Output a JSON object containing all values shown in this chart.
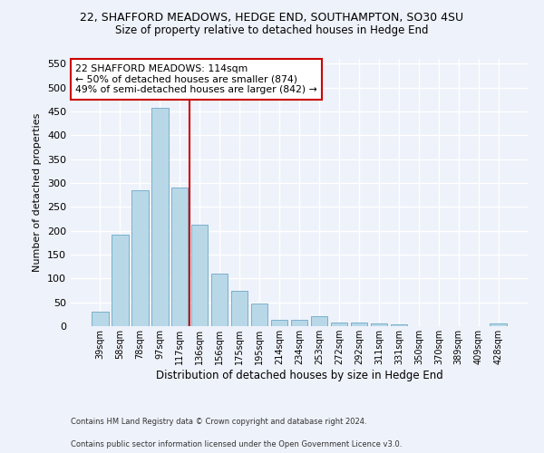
{
  "title1": "22, SHAFFORD MEADOWS, HEDGE END, SOUTHAMPTON, SO30 4SU",
  "title2": "Size of property relative to detached houses in Hedge End",
  "xlabel": "Distribution of detached houses by size in Hedge End",
  "ylabel": "Number of detached properties",
  "bar_labels": [
    "39sqm",
    "58sqm",
    "78sqm",
    "97sqm",
    "117sqm",
    "136sqm",
    "156sqm",
    "175sqm",
    "195sqm",
    "214sqm",
    "234sqm",
    "253sqm",
    "272sqm",
    "292sqm",
    "311sqm",
    "331sqm",
    "350sqm",
    "370sqm",
    "389sqm",
    "409sqm",
    "428sqm"
  ],
  "bar_values": [
    30,
    192,
    285,
    458,
    290,
    213,
    110,
    74,
    47,
    13,
    13,
    21,
    8,
    7,
    5,
    4,
    0,
    0,
    0,
    0,
    5
  ],
  "bar_color": "#b8d8e8",
  "bar_edgecolor": "#7ab0cc",
  "vline_x": 4.5,
  "vline_color": "#cc0000",
  "ylim": [
    0,
    560
  ],
  "yticks": [
    0,
    50,
    100,
    150,
    200,
    250,
    300,
    350,
    400,
    450,
    500,
    550
  ],
  "annotation_title": "22 SHAFFORD MEADOWS: 114sqm",
  "annotation_line1": "← 50% of detached houses are smaller (874)",
  "annotation_line2": "49% of semi-detached houses are larger (842) →",
  "annotation_box_color": "#ffffff",
  "annotation_box_edgecolor": "#cc0000",
  "footnote1": "Contains HM Land Registry data © Crown copyright and database right 2024.",
  "footnote2": "Contains public sector information licensed under the Open Government Licence v3.0.",
  "bg_color": "#eef2fa",
  "grid_color": "#ffffff"
}
